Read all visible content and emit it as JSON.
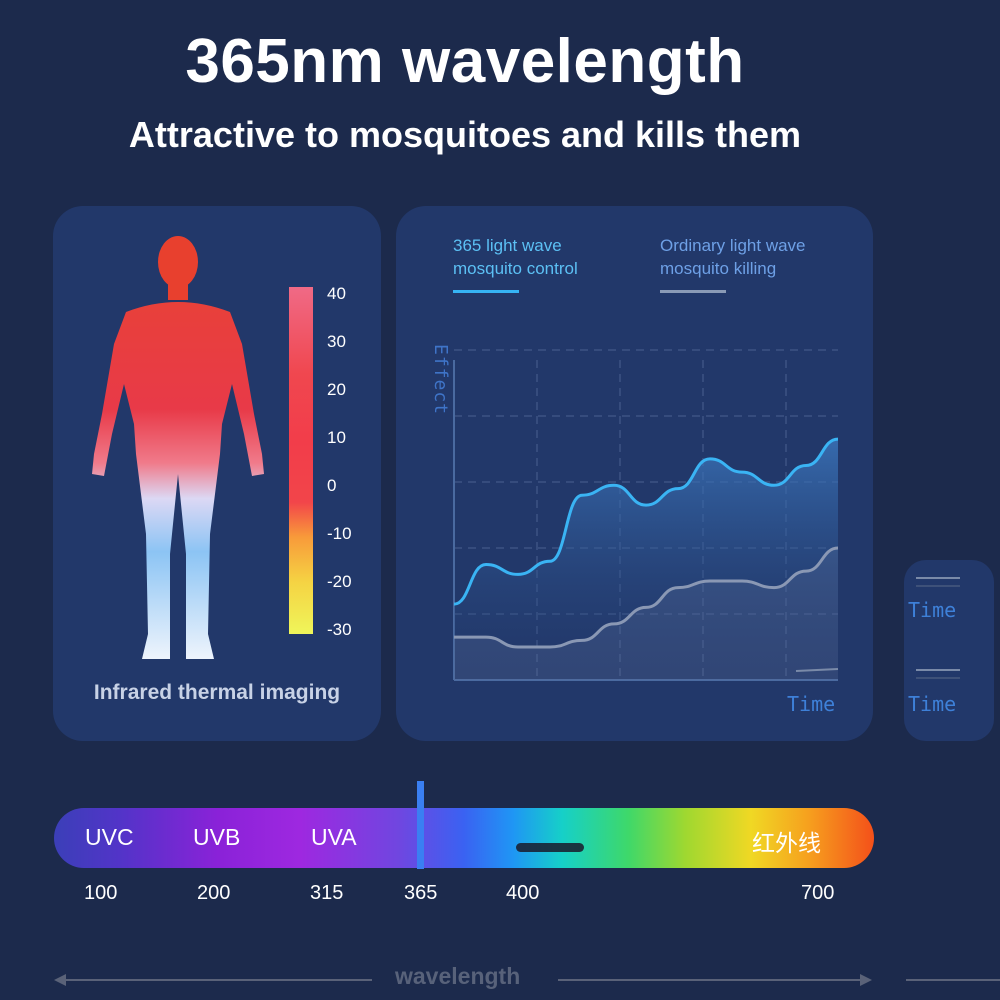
{
  "header": {
    "title": "365nm wavelength",
    "subtitle": "Attractive to mosquitoes and kills them"
  },
  "thermal_panel": {
    "scale_labels": [
      "40",
      "30",
      "20",
      "10",
      "0",
      "-10",
      "-20",
      "-30"
    ],
    "caption": "Infrared thermal imaging"
  },
  "chart_panel": {
    "legend": [
      {
        "line1": "365 light wave",
        "line2": "mosquito control",
        "color": "#36b4f4"
      },
      {
        "line1": "Ordinary light wave",
        "line2": "mosquito killing",
        "color": "#8a9ab6"
      }
    ],
    "y_label": "Effect",
    "x_label": "Time",
    "side_labels": [
      "Time",
      "Time"
    ]
  },
  "chart_data": {
    "type": "line",
    "x": [
      0,
      1,
      2,
      3,
      4,
      5,
      6,
      7,
      8,
      9,
      10,
      11,
      12
    ],
    "series": [
      {
        "name": "365 light wave mosquito control",
        "values": [
          2.3,
          3.5,
          3.2,
          3.6,
          5.6,
          5.9,
          5.3,
          5.8,
          6.7,
          6.3,
          5.9,
          6.5,
          7.3
        ]
      },
      {
        "name": "Ordinary light wave mosquito killing",
        "values": [
          1.3,
          1.3,
          1.0,
          1.0,
          1.2,
          1.7,
          2.2,
          2.8,
          3.0,
          3.0,
          2.8,
          3.3,
          4.0
        ]
      }
    ],
    "xlabel": "Time",
    "ylabel": "Effect",
    "ylim": [
      0,
      10
    ],
    "grid": true
  },
  "spectrum": {
    "band_labels": [
      "UVC",
      "UVB",
      "UVA",
      "红外线"
    ],
    "ticks": [
      "100",
      "200",
      "315",
      "365",
      "400",
      "700"
    ],
    "axis_label": "wavelength",
    "marker_value": 365
  }
}
